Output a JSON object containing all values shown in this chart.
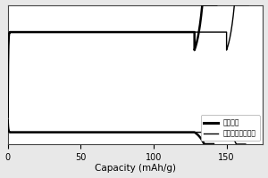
{
  "xlim": [
    0,
    175
  ],
  "ylim": [
    -0.3,
    3.8
  ],
  "xticks": [
    0,
    50,
    100,
    150
  ],
  "yticks": [],
  "legend_labels": [
    "原始样品",
    "本发明方法改性后"
  ],
  "background_color": "#e8e8e8",
  "plot_bg": "#ffffff",
  "line_color": "#000000",
  "xlabel_str": "Capacity (mAh/g)",
  "cap_orig": 133,
  "cap_mod": 155,
  "v_charge_plateau": 3.0,
  "v_discharge_plateau": 0.05,
  "figsize": [
    3.0,
    2.0
  ],
  "dpi": 100
}
